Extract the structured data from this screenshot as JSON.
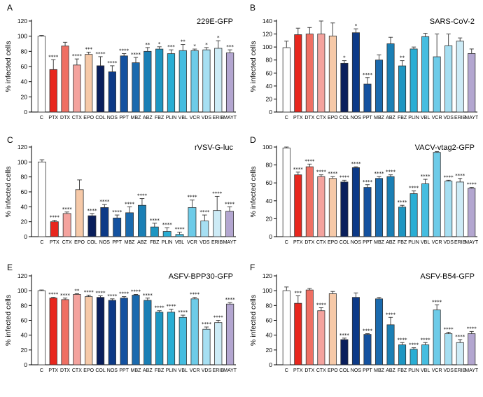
{
  "figure": {
    "colors": {
      "C": "#ffffff",
      "PTX": "#e8271e",
      "DTX": "#ef6f63",
      "CTX": "#f4a39e",
      "EPO": "#f6c9a8",
      "COL": "#0a1f5c",
      "NOS": "#0d3a87",
      "PPT": "#1452a0",
      "MBZ": "#1a6aae",
      "ABZ": "#1a7fb5",
      "FBZ": "#1e96c2",
      "PLIN": "#2aaed4",
      "VBL": "#45bde0",
      "VCR": "#6dcbe8",
      "VDS": "#a6dff2",
      "ERIB": "#cdebf6",
      "MAYT": "#b3a6d0"
    }
  },
  "chart_data": [
    {
      "letter": "A",
      "title": "229E-GFP",
      "type": "bar",
      "ylabel": "% infected cells",
      "ylim": [
        0,
        120
      ],
      "yticks": [
        0,
        20,
        40,
        60,
        80,
        100,
        120
      ],
      "categories": [
        "C",
        "PTX",
        "DTX",
        "CTX",
        "EPO",
        "COL",
        "NOS",
        "PPT",
        "MBZ",
        "ABZ",
        "FBZ",
        "PLIN",
        "VBL",
        "VCR",
        "VDS",
        "ERIB",
        "MAYT"
      ],
      "values": [
        100,
        56,
        87,
        62,
        76,
        61,
        53,
        74,
        65,
        80,
        83,
        77,
        81,
        81,
        82,
        84,
        78
      ],
      "errors": [
        1,
        13,
        5,
        8,
        3,
        12,
        8,
        3,
        7,
        5,
        3,
        5,
        8,
        2,
        3,
        10,
        4
      ],
      "significance": [
        "",
        "****",
        "",
        "****",
        "***",
        "****",
        "****",
        "****",
        "****",
        "**",
        "*",
        "***",
        "**",
        "*",
        "*",
        "*",
        "***"
      ]
    },
    {
      "letter": "B",
      "title": "SARS-CoV-2",
      "type": "bar",
      "ylabel": "% infected cells",
      "ylim": [
        0,
        140
      ],
      "yticks": [
        0,
        20,
        40,
        60,
        80,
        100,
        120,
        140
      ],
      "categories": [
        "C",
        "PTX",
        "DTX",
        "CTX",
        "EPO",
        "COL",
        "NOS",
        "PPT",
        "MBZ",
        "ABZ",
        "FBZ",
        "PLIN",
        "VBL",
        "VCR",
        "VDS",
        "ERIB",
        "MAYT"
      ],
      "values": [
        99,
        119,
        120,
        120,
        117,
        75,
        122,
        43,
        80,
        105,
        71,
        97,
        116,
        85,
        102,
        109,
        90
      ],
      "errors": [
        10,
        10,
        10,
        20,
        20,
        4,
        6,
        10,
        8,
        10,
        8,
        3,
        5,
        35,
        18,
        5,
        7
      ],
      "significance": [
        "",
        "",
        "",
        "",
        "",
        "*",
        "*",
        "****",
        "",
        "",
        "**",
        "",
        "",
        "",
        "",
        "",
        ""
      ]
    },
    {
      "letter": "C",
      "title": "rVSV-G-luc",
      "type": "bar",
      "ylabel": "% infected cells",
      "ylim": [
        0,
        120
      ],
      "yticks": [
        0,
        20,
        40,
        60,
        80,
        100,
        120
      ],
      "categories": [
        "C",
        "PTX",
        "CTX",
        "EPO",
        "COL",
        "NOS",
        "PPT",
        "MBZ",
        "ABZ",
        "FBZ",
        "PLIN",
        "VBL",
        "VCR",
        "VDS",
        "ERIB",
        "MAYT"
      ],
      "values": [
        100,
        20,
        31,
        63,
        28,
        39,
        25,
        32,
        42,
        13,
        7,
        3,
        39,
        21,
        35,
        34
      ],
      "errors": [
        3,
        2,
        2,
        13,
        3,
        4,
        4,
        8,
        9,
        5,
        5,
        3,
        10,
        8,
        19,
        6
      ],
      "significance": [
        "",
        "****",
        "****",
        "",
        "****",
        "****",
        "****",
        "****",
        "****",
        "****",
        "****",
        "****",
        "****",
        "****",
        "****",
        "****"
      ]
    },
    {
      "letter": "D",
      "title": "VACV-vtag2-GFP",
      "type": "bar",
      "ylabel": "% infected cells",
      "ylim": [
        0,
        100
      ],
      "yticks": [
        0,
        20,
        40,
        60,
        80,
        100
      ],
      "categories": [
        "C",
        "PTX",
        "DTX",
        "CTX",
        "EPO",
        "COL",
        "NOS",
        "PPT",
        "MBZ",
        "ABZ",
        "FBZ",
        "PLIN",
        "VBL",
        "VCR",
        "VDS",
        "ERIB",
        "MAYT"
      ],
      "values": [
        99,
        69,
        78,
        67,
        65,
        61,
        77,
        55,
        65,
        67,
        33,
        48,
        59,
        94,
        62,
        61,
        54
      ],
      "errors": [
        1,
        3,
        3,
        2,
        2,
        2,
        1,
        3,
        2,
        2,
        2,
        3,
        5,
        1,
        1,
        4,
        1
      ],
      "significance": [
        "",
        "****",
        "****",
        "****",
        "****",
        "****",
        "****",
        "****",
        "****",
        "****",
        "****",
        "****",
        "****",
        "",
        "****",
        "****",
        "****"
      ]
    },
    {
      "letter": "E",
      "title": "ASFV-BPP30-GFP",
      "type": "bar",
      "ylabel": "% infected cells",
      "ylim": [
        0,
        120
      ],
      "yticks": [
        0,
        20,
        40,
        60,
        80,
        100,
        120
      ],
      "categories": [
        "C",
        "PTX",
        "DTX",
        "CTX",
        "EPO",
        "COL",
        "NOS",
        "PPT",
        "MBZ",
        "ABZ",
        "FBZ",
        "PLIN",
        "VBL",
        "VCR",
        "VDS",
        "ERIB",
        "MAYT"
      ],
      "values": [
        100,
        90,
        88,
        95,
        92,
        91,
        87,
        90,
        94,
        87,
        71,
        71,
        64,
        89,
        48,
        57,
        82
      ],
      "errors": [
        1,
        1,
        2,
        1,
        2,
        2,
        2,
        2,
        1,
        3,
        2,
        4,
        3,
        2,
        3,
        3,
        2
      ],
      "significance": [
        "",
        "****",
        "****",
        "**",
        "****",
        "****",
        "****",
        "****",
        "****",
        "****",
        "****",
        "****",
        "****",
        "****",
        "****",
        "****",
        "****"
      ]
    },
    {
      "letter": "F",
      "title": "ASFV-B54-GFP",
      "type": "bar",
      "ylabel": "% infected cells",
      "ylim": [
        0,
        120
      ],
      "yticks": [
        0,
        20,
        40,
        60,
        80,
        100,
        120
      ],
      "categories": [
        "C",
        "PTX",
        "DTX",
        "CTX",
        "EPO",
        "COL",
        "NOS",
        "PPT",
        "MBZ",
        "ABZ",
        "FBZ",
        "PLIN",
        "VBL",
        "VCR",
        "VDS",
        "ERIB",
        "MAYT"
      ],
      "values": [
        100,
        83,
        101,
        73,
        96,
        34,
        91,
        41,
        89,
        54,
        27,
        21,
        27,
        74,
        42,
        30,
        42
      ],
      "errors": [
        5,
        10,
        2,
        4,
        3,
        2,
        6,
        1,
        2,
        10,
        3,
        2,
        3,
        7,
        2,
        4,
        3
      ],
      "significance": [
        "",
        "***",
        "",
        "****",
        "",
        "****",
        "",
        "****",
        "",
        "****",
        "****",
        "****",
        "****",
        "****",
        "****",
        "****",
        "****"
      ]
    }
  ]
}
